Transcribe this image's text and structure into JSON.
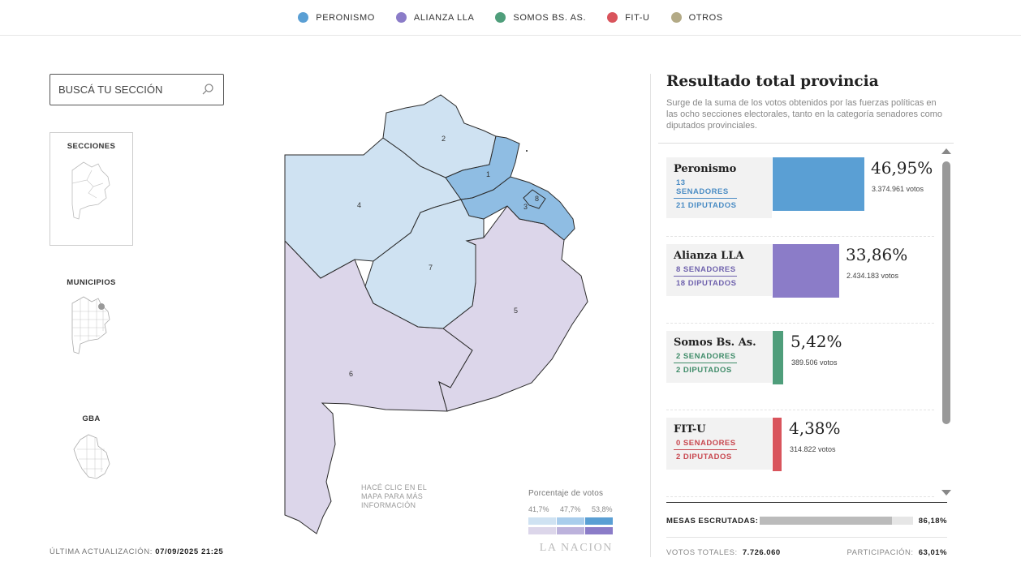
{
  "legend": [
    {
      "label": "PERONISMO",
      "color": "#5a9fd4"
    },
    {
      "label": "ALIANZA LLA",
      "color": "#8b7cc8"
    },
    {
      "label": "SOMOS BS. AS.",
      "color": "#4f9e7b"
    },
    {
      "label": "FIT-U",
      "color": "#d9545c"
    },
    {
      "label": "OTROS",
      "color": "#b3aa86"
    }
  ],
  "search": {
    "placeholder": "BUSCÁ TU SECCIÓN"
  },
  "views": {
    "secciones": "SECCIONES",
    "municipios": "MUNICIPIOS",
    "gba": "GBA",
    "active": "SECCIONES"
  },
  "last_update": {
    "label": "ÚLTIMA ACTUALIZACIÓN:",
    "value": "07/09/2025 21:25"
  },
  "map": {
    "hint": "HACÉ CLIC EN EL MAPA PARA MÁS INFORMACIÓN",
    "sections": [
      {
        "number": "1",
        "winner": "Peronismo"
      },
      {
        "number": "2",
        "winner": "Peronismo"
      },
      {
        "number": "3",
        "winner": "Peronismo"
      },
      {
        "number": "4",
        "winner": "Peronismo"
      },
      {
        "number": "5",
        "winner": "Alianza LLA"
      },
      {
        "number": "6",
        "winner": "Alianza LLA"
      },
      {
        "number": "7",
        "winner": "Peronismo"
      },
      {
        "number": "8",
        "winner": "Peronismo"
      }
    ],
    "shade_colors": {
      "light_blue": "#cfe2f2",
      "mid_blue": "#8fbde3",
      "light_purple": "#dcd6ea"
    }
  },
  "scale": {
    "title": "Porcentaje de votos",
    "ticks": [
      "41,7%",
      "47,7%",
      "53,8%"
    ],
    "blue_steps": [
      "#cfe2f2",
      "#a9cdec",
      "#5a9fd4"
    ],
    "purple_steps": [
      "#dcd6ea",
      "#bcb2dc",
      "#8b7cc8"
    ],
    "brand": "LA NACION"
  },
  "panel": {
    "title": "Resultado total provincia",
    "subtitle": "Surge de la suma de los votos obtenidos por las fuerzas políticas en las ocho secciones electorales, tanto en la categoría senadores como diputados provinciales."
  },
  "results": [
    {
      "party": "Peronismo",
      "senadores": "13 SENADORES",
      "diputados": "21 DIPUTADOS",
      "pct": "46,95%",
      "pct_value": 46.95,
      "votes": "3.374.961 votos",
      "color": "#5a9fd4",
      "label_color": "#4a8cc4"
    },
    {
      "party": "Alianza LLA",
      "senadores": "8 SENADORES",
      "diputados": "18 DIPUTADOS",
      "pct": "33,86%",
      "pct_value": 33.86,
      "votes": "2.434.183 votos",
      "color": "#8b7cc8",
      "label_color": "#6f62ad"
    },
    {
      "party": "Somos Bs. As.",
      "senadores": "2 SENADORES",
      "diputados": "2 DIPUTADOS",
      "pct": "5,42%",
      "pct_value": 5.42,
      "votes": "389.506 votos",
      "color": "#4f9e7b",
      "label_color": "#3f8c69"
    },
    {
      "party": "FIT-U",
      "senadores": "0 SENADORES",
      "diputados": "2 DIPUTADOS",
      "pct": "4,38%",
      "pct_value": 4.38,
      "votes": "314.822 votos",
      "color": "#d9545c",
      "label_color": "#c8474f"
    }
  ],
  "mesas": {
    "label": "MESAS ESCRUTADAS:",
    "value": "86,18%",
    "fraction": 0.8618
  },
  "totals": {
    "label": "VOTOS TOTALES:",
    "value": "7.726.060"
  },
  "participacion": {
    "label": "PARTICIPACIÓN:",
    "value": "63,01%"
  }
}
